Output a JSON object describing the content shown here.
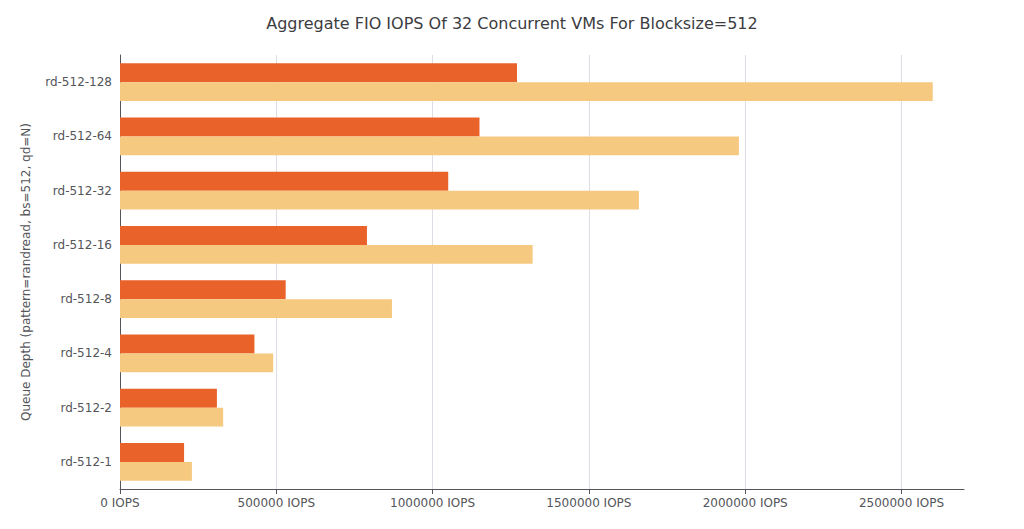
{
  "chart_data": {
    "type": "bar",
    "orientation": "horizontal",
    "title": "Aggregate FIO IOPS Of 32 Concurrent VMs For Blocksize=512",
    "ylabel": "Queue Depth (pattern=randread, bs=512, qd=N)",
    "categories": [
      "rd-512-128",
      "rd-512-64",
      "rd-512-32",
      "rd-512-16",
      "rd-512-8",
      "rd-512-4",
      "rd-512-2",
      "rd-512-1"
    ],
    "series": [
      {
        "color": "#E8622A",
        "values": [
          1270000,
          1150000,
          1050000,
          790000,
          530000,
          430000,
          310000,
          205000
        ]
      },
      {
        "color": "#F5C97F",
        "values": [
          2600000,
          1980000,
          1660000,
          1320000,
          870000,
          490000,
          330000,
          230000
        ]
      }
    ],
    "xlim": [
      0,
      2700000
    ],
    "xticks": [
      {
        "value": 0,
        "label": "0 IOPS"
      },
      {
        "value": 500000,
        "label": "500000 IOPS"
      },
      {
        "value": 1000000,
        "label": "1000000 IOPS"
      },
      {
        "value": 1500000,
        "label": "1500000 IOPS"
      },
      {
        "value": 2000000,
        "label": "2000000 IOPS"
      },
      {
        "value": 2500000,
        "label": "2500000 IOPS"
      }
    ],
    "grid": true
  }
}
